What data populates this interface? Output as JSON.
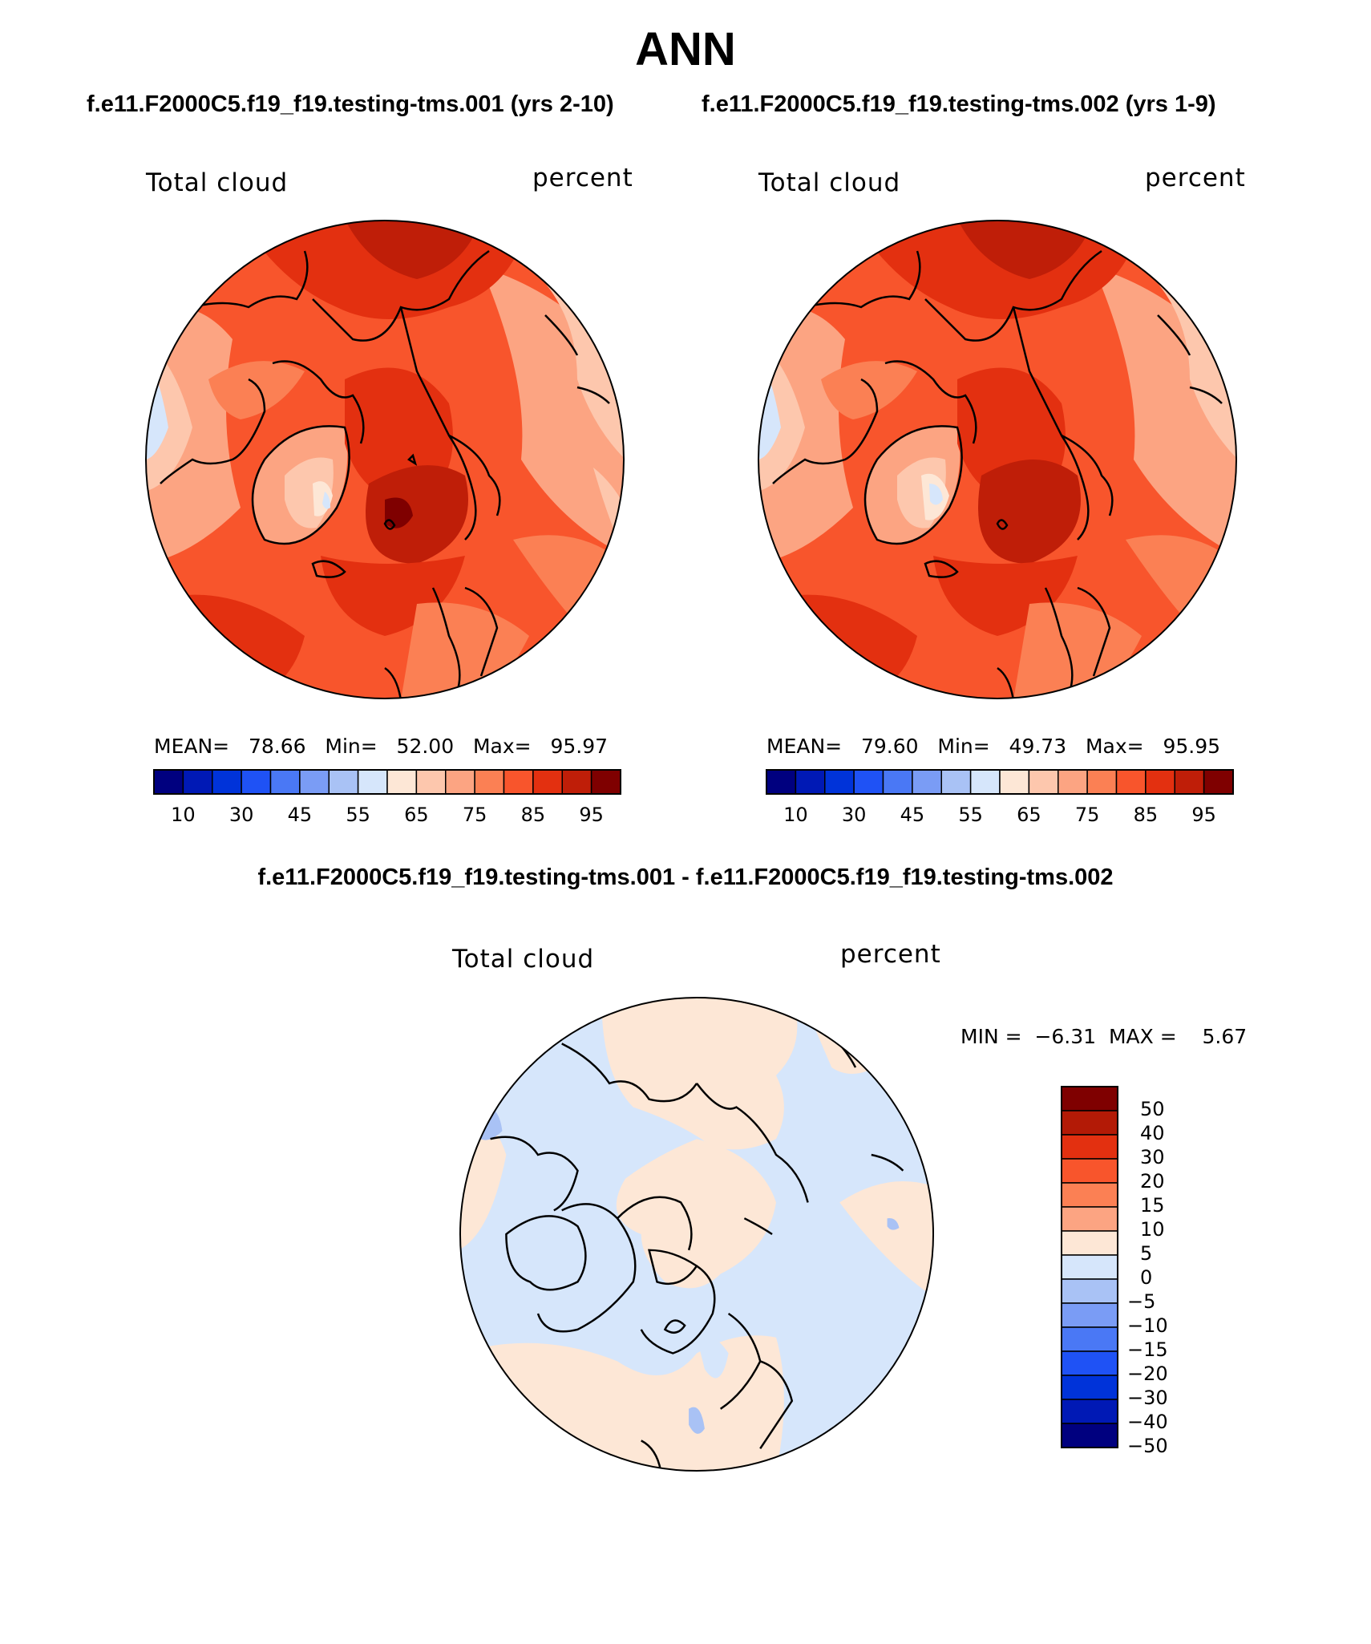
{
  "header": {
    "title": "ANN",
    "case_left": "f.e11.F2000C5.f19_f19.testing-tms.001 (yrs 2-10)",
    "case_right": "f.e11.F2000C5.f19_f19.testing-tms.002 (yrs 1-9)",
    "diff_title": "f.e11.F2000C5.f19_f19.testing-tms.001 - f.e11.F2000C5.f19_f19.testing-tms.002"
  },
  "panels": {
    "left": {
      "variable": "Total cloud",
      "units": "percent",
      "mean_label": "MEAN=",
      "mean": "78.66",
      "min_label": "Min=",
      "min": "52.00",
      "max_label": "Max=",
      "max": "95.97"
    },
    "right": {
      "variable": "Total cloud",
      "units": "percent",
      "mean_label": "MEAN=",
      "mean": "79.60",
      "min_label": "Min=",
      "min": "49.73",
      "max_label": "Max=",
      "max": "95.95"
    },
    "diff": {
      "variable": "Total cloud",
      "units": "percent",
      "min_label": "MIN =",
      "min": "−6.31",
      "max_label": "MAX =",
      "max": "5.67"
    }
  },
  "colorbar_abs": {
    "colors": [
      "#00007f",
      "#0019b5",
      "#0033d9",
      "#1f52f5",
      "#4a78f5",
      "#7a9cf5",
      "#a9c2f5",
      "#d6e6fb",
      "#fde7d6",
      "#fdc7ad",
      "#fca482",
      "#fb8054",
      "#f8552c",
      "#e33010",
      "#bf1e08",
      "#7f0000"
    ],
    "ticks": [
      "10",
      "30",
      "45",
      "55",
      "65",
      "75",
      "85",
      "95"
    ]
  },
  "colorbar_diff": {
    "colors_top_to_bottom": [
      "#7f0000",
      "#b31a06",
      "#e33010",
      "#f8552c",
      "#fb8054",
      "#fca482",
      "#fde7d6",
      "#d6e6fb",
      "#a9c2f5",
      "#7a9cf5",
      "#4a78f5",
      "#1f52f5",
      "#0033d9",
      "#0019b5",
      "#00007f"
    ],
    "ticks_top_to_bottom": [
      "50",
      "40",
      "30",
      "20",
      "15",
      "10",
      "5",
      "0",
      "−5",
      "−10",
      "−15",
      "−20",
      "−30",
      "−40",
      "−50"
    ]
  }
}
